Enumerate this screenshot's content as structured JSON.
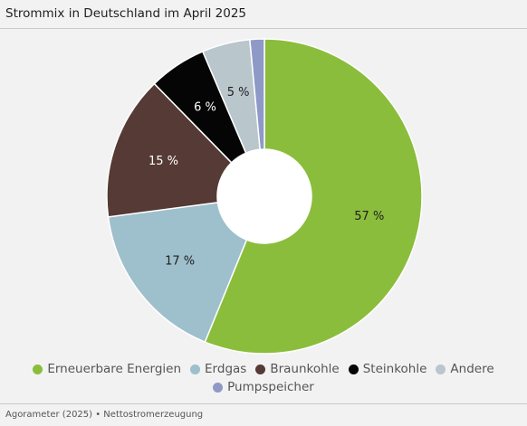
{
  "title": "Strommix in Deutschland im April 2025",
  "source": "Agorameter (2025) • Nettostromerzeugung",
  "chart_data": {
    "type": "pie",
    "variant": "donut",
    "title": "Strommix in Deutschland im April 2025",
    "legend_position": "bottom",
    "slices": [
      {
        "label": "Erneuerbare Energien",
        "value": 57,
        "display": "57 %",
        "color": "#8bbd3c"
      },
      {
        "label": "Erdgas",
        "value": 17,
        "display": "17 %",
        "color": "#9ebfcc"
      },
      {
        "label": "Braunkohle",
        "value": 15,
        "display": "15 %",
        "color": "#553a35"
      },
      {
        "label": "Steinkohle",
        "value": 6,
        "display": "6 %",
        "color": "#050505"
      },
      {
        "label": "Andere",
        "value": 5,
        "display": "5 %",
        "color": "#b9c6cc"
      },
      {
        "label": "Pumpspeicher",
        "value": 1.5,
        "display": "",
        "color": "#8f99c8"
      }
    ]
  }
}
